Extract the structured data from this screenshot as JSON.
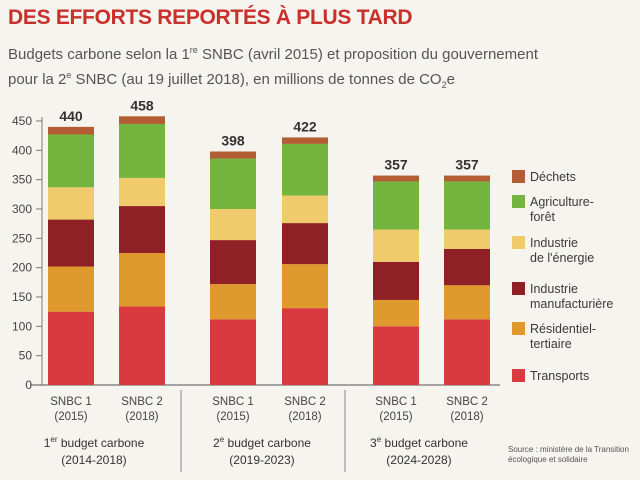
{
  "header": {
    "title": "DES EFFORTS REPORTÉS À PLUS TARD",
    "subtitle_line1": "Budgets carbone selon la 1re SNBC (avril 2015) et proposition du gouvernement",
    "subtitle_line2": "pour la 2e SNBC (au 19 juillet 2018), en millions de tonnes de CO2e"
  },
  "source": [
    "Source : ministère de la Transition",
    "écologique et solidaire"
  ],
  "chart_data": {
    "type": "bar",
    "stacked": true,
    "title": "DES EFFORTS REPORTÉS À PLUS TARD",
    "ylim": [
      0,
      450
    ],
    "yticks": [
      0,
      50,
      100,
      150,
      200,
      250,
      300,
      350,
      400,
      450
    ],
    "grid": false,
    "legend_position": "right",
    "categories": [
      [
        "SNBC 1",
        "(2015)"
      ],
      [
        "SNBC 2",
        "(2018)"
      ],
      [
        "SNBC 1",
        "(2015)"
      ],
      [
        "SNBC 2",
        "(2018)"
      ],
      [
        "SNBC 1",
        "(2015)"
      ],
      [
        "SNBC 2",
        "(2018)"
      ]
    ],
    "groups": [
      {
        "name": [
          "1er budget carbone",
          "(2014-2018)"
        ],
        "bars": [
          0,
          1
        ]
      },
      {
        "name": [
          "2e budget carbone",
          "(2019-2023)"
        ],
        "bars": [
          2,
          3
        ]
      },
      {
        "name": [
          "3e budget carbone",
          "(2024-2028)"
        ],
        "bars": [
          4,
          5
        ]
      }
    ],
    "totals": [
      440,
      458,
      398,
      422,
      357,
      357
    ],
    "series": [
      {
        "name": "Transports",
        "color": "#d83a3f",
        "values": [
          125,
          134,
          112,
          131,
          100,
          112
        ]
      },
      {
        "name": [
          "Résidentiel-",
          "tertiaire"
        ],
        "color": "#e0992c",
        "values": [
          77,
          91,
          60,
          75,
          45,
          58
        ]
      },
      {
        "name": [
          "Industrie",
          "manufacturière"
        ],
        "color": "#8f2026",
        "values": [
          80,
          80,
          75,
          70,
          65,
          62
        ]
      },
      {
        "name": [
          "Industrie",
          "de l'énergie"
        ],
        "color": "#efcb6c",
        "values": [
          55,
          48,
          53,
          47,
          55,
          33
        ]
      },
      {
        "name": [
          "Agriculture-",
          "forêt"
        ],
        "color": "#74b540",
        "values": [
          90,
          92,
          86,
          88,
          82,
          82
        ]
      },
      {
        "name": "Déchets",
        "color": "#b25d33",
        "values": [
          13,
          13,
          12,
          11,
          10,
          10
        ]
      }
    ]
  }
}
